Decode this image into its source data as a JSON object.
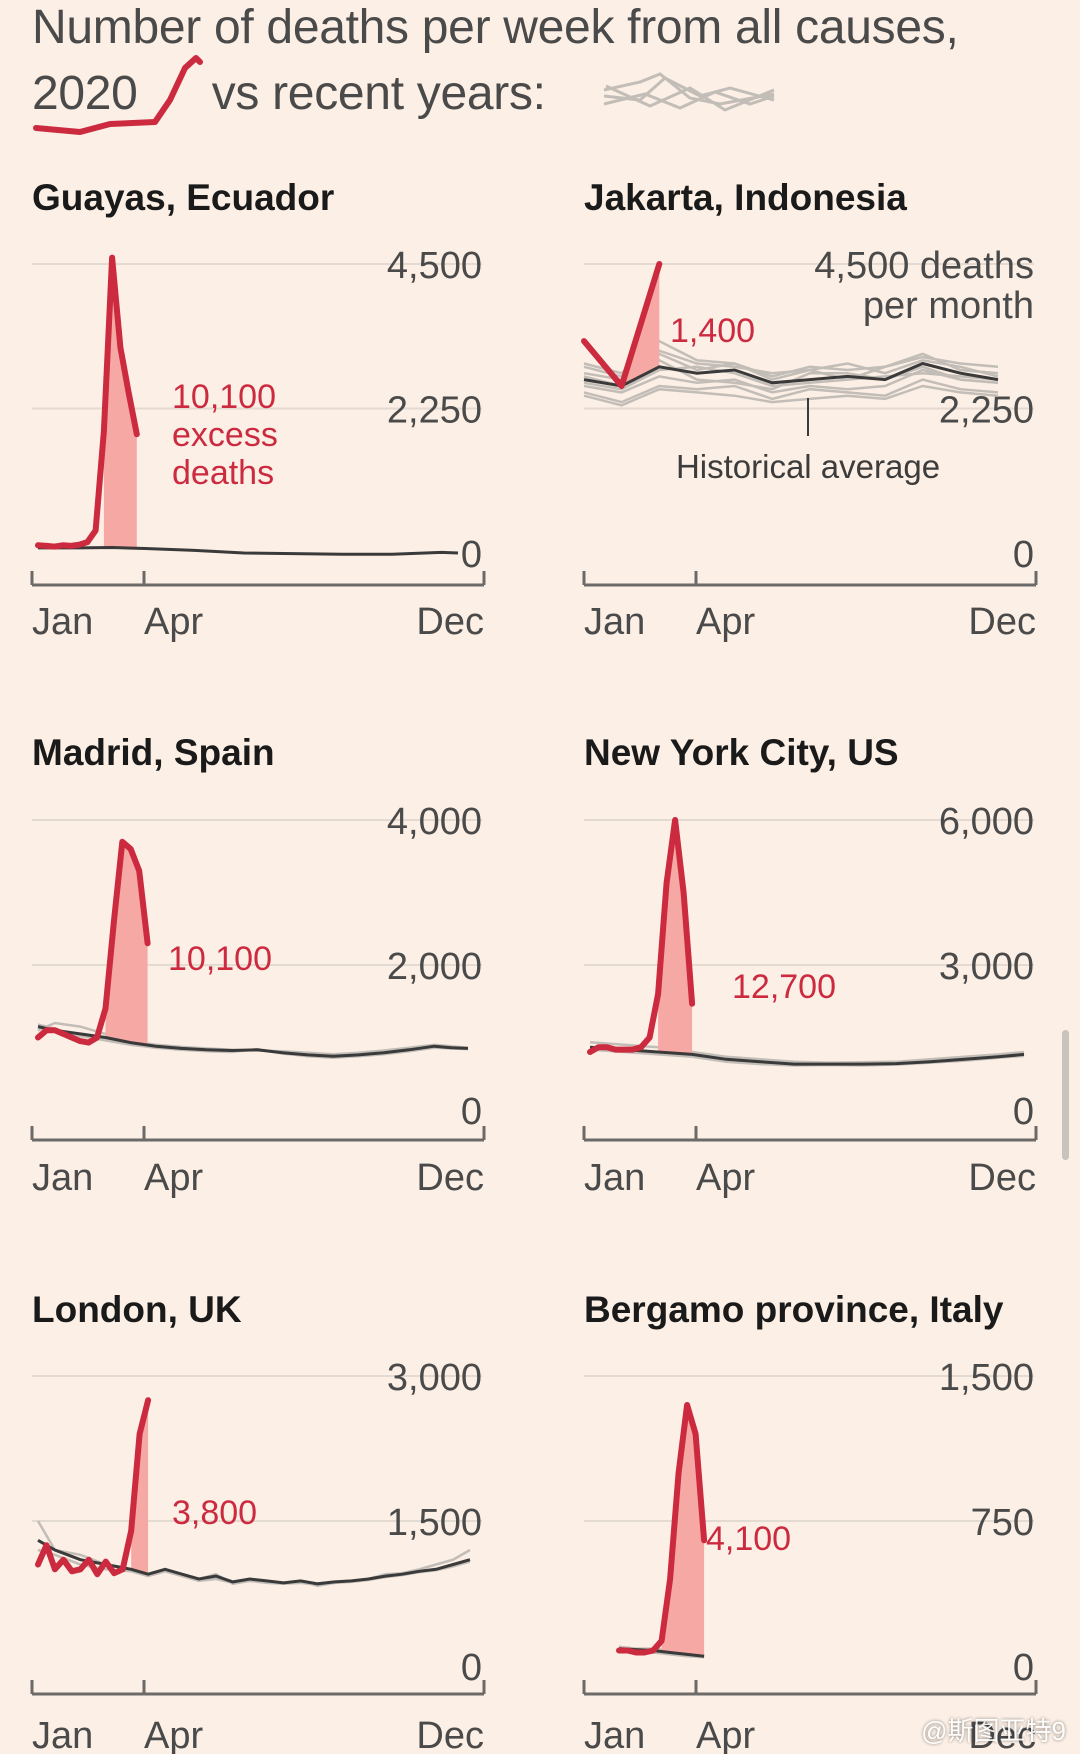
{
  "title": {
    "line1": "Number of deaths per week from all causes,",
    "year_label": "2020",
    "line2_rest": "vs recent years:"
  },
  "colors": {
    "background": "#fcefe5",
    "line_2020": "#cc2a3f",
    "excess_fill": "#f6a8a4",
    "average_line": "#3a3a3a",
    "recent_years": "#c3bdb8",
    "grid": "#e3dad2",
    "axis": "#6c6a68",
    "tick_text": "#4a4a4a"
  },
  "chart_data": [
    {
      "type": "line",
      "title": "Guayas, Ecuador",
      "x_tick_labels": [
        "Jan",
        "Apr",
        "Dec"
      ],
      "x_ticks_week": [
        1,
        14,
        52
      ],
      "ylim": [
        0,
        4500
      ],
      "y_ticks": [
        {
          "value": 4500,
          "label": "4,500"
        },
        {
          "value": 2250,
          "label": "2,250"
        },
        {
          "value": 0,
          "label": "0"
        }
      ],
      "series": [
        {
          "role": "2020",
          "x": [
            1,
            2,
            3,
            4,
            5,
            6,
            7,
            8,
            9,
            10,
            11,
            12,
            13,
            14,
            15
          ],
          "values": [
            120,
            110,
            100,
            120,
            110,
            130,
            170,
            350,
            1900,
            4600,
            3200,
            2500,
            1850,
            null,
            null
          ]
        },
        {
          "role": "average",
          "x": [
            1,
            6,
            10,
            14,
            20,
            26,
            32,
            38,
            44,
            50,
            52
          ],
          "values": [
            80,
            80,
            85,
            70,
            40,
            0,
            -10,
            -20,
            -20,
            10,
            0
          ]
        }
      ],
      "recent_years": [],
      "excess_weeks": [
        9,
        15
      ],
      "annotation": {
        "lines": [
          "10,100",
          "excess",
          "deaths"
        ]
      }
    },
    {
      "type": "line",
      "title": "Jakarta, Indonesia",
      "x_tick_labels": [
        "Jan",
        "Apr",
        "Dec"
      ],
      "x_ticks_week": [
        1,
        14,
        52
      ],
      "ylim": [
        0,
        4500
      ],
      "y_ticks": [
        {
          "value": 4500,
          "label": "4,500 deaths"
        },
        {
          "value": 2250,
          "label": "2,250"
        },
        {
          "value": 0,
          "label": "0"
        }
      ],
      "y_top_unit": "per month",
      "x_unit": "month",
      "series": [
        {
          "role": "2020",
          "x": [
            1,
            2,
            3
          ],
          "values": [
            3300,
            2600,
            4500
          ]
        },
        {
          "role": "average",
          "x": [
            1,
            2,
            3,
            4,
            5,
            6,
            7,
            8,
            9,
            10,
            11,
            12
          ],
          "values": [
            2700,
            2600,
            2900,
            2800,
            2850,
            2650,
            2700,
            2750,
            2700,
            2950,
            2800,
            2700
          ]
        }
      ],
      "recent_years": [
        [
          2800,
          2700,
          3100,
          2850,
          2950,
          2700,
          2850,
          2950,
          2800,
          3000,
          2900,
          2750
        ],
        [
          2600,
          2500,
          2750,
          2650,
          2700,
          2500,
          2600,
          2550,
          2600,
          2850,
          2700,
          2650
        ],
        [
          2900,
          2750,
          3150,
          2950,
          2900,
          2800,
          2850,
          2700,
          2900,
          3100,
          2850,
          2800
        ],
        [
          2500,
          2350,
          2600,
          2550,
          2600,
          2400,
          2550,
          2500,
          2450,
          2700,
          2550,
          2500
        ],
        [
          2750,
          2600,
          3000,
          2700,
          2650,
          2550,
          2800,
          2800,
          2700,
          2900,
          2700,
          2650
        ],
        [
          2650,
          2550,
          2850,
          2900,
          2800,
          2600,
          2650,
          2700,
          2750,
          2800,
          2750,
          2700
        ],
        [
          2450,
          2300,
          2550,
          2500,
          2450,
          2350,
          2400,
          2450,
          2400,
          2600,
          2500,
          2450
        ],
        [
          2950,
          2800,
          3300,
          3000,
          2950,
          2750,
          2900,
          2850,
          2900,
          3050,
          2950,
          2900
        ]
      ],
      "excess_months": [
        2,
        3
      ],
      "annotation": {
        "lines": [
          "1,400"
        ]
      },
      "average_label": "Historical average"
    },
    {
      "type": "line",
      "title": "Madrid, Spain",
      "x_tick_labels": [
        "Jan",
        "Apr",
        "Dec"
      ],
      "x_ticks_week": [
        1,
        14,
        52
      ],
      "ylim": [
        0,
        4000
      ],
      "y_ticks": [
        {
          "value": 4000,
          "label": "4,000"
        },
        {
          "value": 2000,
          "label": "2,000"
        },
        {
          "value": 0,
          "label": "0"
        }
      ],
      "series": [
        {
          "role": "2020",
          "x": [
            1,
            2,
            3,
            4,
            5,
            6,
            7,
            8,
            9,
            10,
            11,
            12,
            13,
            14,
            15
          ],
          "values": [
            1000,
            1100,
            1100,
            1050,
            1000,
            950,
            930,
            1000,
            1400,
            2600,
            3700,
            3600,
            3300,
            2300,
            null
          ]
        },
        {
          "role": "average",
          "x": [
            1,
            3,
            6,
            9,
            12,
            15,
            18,
            21,
            24,
            27,
            30,
            33,
            36,
            39,
            42,
            45,
            48,
            50,
            52
          ],
          "values": [
            1150,
            1100,
            1050,
            1000,
            930,
            880,
            850,
            830,
            820,
            830,
            790,
            760,
            740,
            760,
            790,
            830,
            880,
            860,
            850
          ]
        }
      ],
      "recent_years": [
        [
          1100,
          1200,
          1150,
          1050,
          950,
          900,
          870,
          850,
          830,
          820,
          810,
          790,
          770,
          790,
          820,
          860,
          900,
          880,
          860
        ],
        [
          1180,
          1120,
          1020,
          960,
          900,
          860,
          830,
          810,
          800,
          840,
          780,
          740,
          720,
          740,
          770,
          810,
          860,
          850,
          840
        ]
      ],
      "excess_weeks": [
        9,
        14
      ],
      "annotation": {
        "lines": [
          "10,100"
        ]
      }
    },
    {
      "type": "line",
      "title": "New York City, US",
      "x_tick_labels": [
        "Jan",
        "Apr",
        "Dec"
      ],
      "x_ticks_week": [
        1,
        14,
        52
      ],
      "ylim": [
        0,
        6000
      ],
      "y_ticks": [
        {
          "value": 6000,
          "label": "6,000"
        },
        {
          "value": 3000,
          "label": "3,000"
        },
        {
          "value": 0,
          "label": "0"
        }
      ],
      "series": [
        {
          "role": "2020",
          "x": [
            1,
            2,
            3,
            4,
            5,
            6,
            7,
            8,
            9,
            10,
            11,
            12,
            13,
            14,
            15
          ],
          "values": [
            1200,
            1300,
            1300,
            1250,
            1250,
            1250,
            1300,
            1500,
            2400,
            4700,
            6000,
            4500,
            2200,
            null,
            null
          ]
        },
        {
          "role": "average",
          "x": [
            1,
            5,
            9,
            13,
            17,
            21,
            25,
            29,
            33,
            37,
            41,
            45,
            49,
            52
          ],
          "values": [
            1300,
            1250,
            1200,
            1150,
            1050,
            1000,
            950,
            950,
            950,
            960,
            1000,
            1050,
            1100,
            1150
          ]
        }
      ],
      "recent_years": [
        [
          1400,
          1350,
          1300,
          1200,
          1100,
          1050,
          1000,
          980,
          990,
          1000,
          1050,
          1100,
          1150,
          1200
        ],
        [
          1250,
          1200,
          1150,
          1100,
          1000,
          950,
          920,
          930,
          920,
          940,
          980,
          1020,
          1080,
          1120
        ]
      ],
      "excess_weeks": [
        9,
        13
      ],
      "annotation": {
        "lines": [
          "12,700"
        ]
      }
    },
    {
      "type": "line",
      "title": "London, UK",
      "x_tick_labels": [
        "Jan",
        "Apr",
        "Dec"
      ],
      "x_ticks_week": [
        1,
        14,
        52
      ],
      "ylim": [
        0,
        3000
      ],
      "y_ticks": [
        {
          "value": 3000,
          "label": "3,000"
        },
        {
          "value": 1500,
          "label": "1,500"
        },
        {
          "value": 0,
          "label": "0"
        }
      ],
      "series": [
        {
          "role": "2020",
          "x": [
            1,
            2,
            3,
            4,
            5,
            6,
            7,
            8,
            9,
            10,
            11,
            12,
            13,
            14,
            15
          ],
          "values": [
            1050,
            1250,
            1000,
            1100,
            980,
            1000,
            1100,
            950,
            1080,
            960,
            1000,
            1400,
            2400,
            2750,
            null
          ]
        },
        {
          "role": "average",
          "x": [
            1,
            3,
            6,
            9,
            12,
            14,
            16,
            18,
            20,
            22,
            24,
            26,
            28,
            30,
            32,
            34,
            36,
            38,
            40,
            42,
            44,
            46,
            48,
            50,
            52
          ],
          "values": [
            1300,
            1200,
            1100,
            1050,
            1000,
            950,
            1000,
            950,
            900,
            930,
            870,
            900,
            880,
            860,
            880,
            850,
            870,
            880,
            900,
            930,
            950,
            980,
            1000,
            1050,
            1100
          ]
        }
      ],
      "recent_years": [
        [
          1500,
          1200,
          1150,
          1050,
          1000,
          950,
          1000,
          930,
          900,
          950,
          850,
          880,
          870,
          850,
          880,
          830,
          860,
          880,
          900,
          950,
          960,
          1000,
          1050,
          1100,
          1200
        ],
        [
          1200,
          1150,
          1050,
          1000,
          980,
          930,
          980,
          930,
          880,
          900,
          860,
          880,
          860,
          850,
          860,
          840,
          860,
          870,
          890,
          920,
          940,
          970,
          990,
          1030,
          1080
        ]
      ],
      "excess_weeks": [
        12,
        15
      ],
      "annotation": {
        "lines": [
          "3,800"
        ]
      }
    },
    {
      "type": "line",
      "title": "Bergamo province, Italy",
      "x_tick_labels": [
        "Jan",
        "Apr",
        "Dec"
      ],
      "x_ticks_week": [
        1,
        14,
        52
      ],
      "ylim": [
        0,
        1500
      ],
      "y_ticks": [
        {
          "value": 1500,
          "label": "1,500"
        },
        {
          "value": 750,
          "label": "750"
        },
        {
          "value": 0,
          "label": "0"
        }
      ],
      "series": [
        {
          "role": "2020",
          "x": [
            3,
            4,
            5,
            6,
            7,
            8,
            9,
            10,
            11,
            12,
            13,
            14
          ],
          "values": [
            80,
            80,
            70,
            70,
            80,
            130,
            450,
            1000,
            1350,
            1200,
            650,
            null
          ]
        },
        {
          "role": "average",
          "x": [
            3,
            5,
            7,
            9,
            11,
            13
          ],
          "values": [
            90,
            85,
            80,
            70,
            60,
            50
          ]
        }
      ],
      "recent_years": [
        [
          100,
          90,
          90,
          80,
          70,
          60
        ],
        [
          80,
          75,
          70,
          60,
          50,
          45
        ]
      ],
      "excess_weeks": [
        8,
        13
      ],
      "annotation": {
        "lines": [
          "4,100"
        ]
      }
    }
  ],
  "watermark": "@斯图亚特9"
}
